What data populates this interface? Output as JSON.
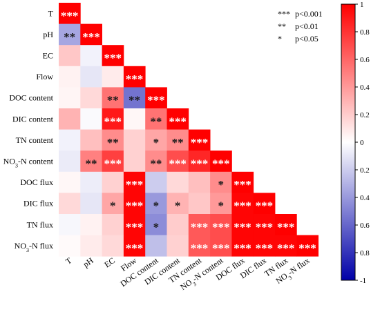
{
  "chart_data": {
    "type": "heatmap",
    "variables": [
      "T",
      "pH",
      "EC",
      "Flow",
      "DOC content",
      "DIC content",
      "TN content",
      "NO₃-N content",
      "DOC flux",
      "DIC flux",
      "TN flux",
      "NO₃-N flux"
    ],
    "matrix": [
      [
        1
      ],
      [
        -0.35,
        1
      ],
      [
        0.22,
        -0.05,
        1
      ],
      [
        0.05,
        -0.1,
        0.08,
        1
      ],
      [
        0.04,
        0.15,
        0.55,
        -0.55,
        1
      ],
      [
        0.3,
        -0.02,
        0.9,
        0.03,
        0.55,
        1
      ],
      [
        -0.05,
        0.25,
        0.45,
        0.18,
        0.35,
        0.45,
        1
      ],
      [
        -0.08,
        0.5,
        0.75,
        0.18,
        0.45,
        0.7,
        0.85,
        1
      ],
      [
        0.03,
        -0.07,
        0.18,
        0.98,
        -0.2,
        0.15,
        0.25,
        0.45,
        1
      ],
      [
        0.15,
        -0.1,
        0.35,
        0.98,
        -0.4,
        0.3,
        0.22,
        0.4,
        0.98,
        1
      ],
      [
        -0.03,
        0.05,
        0.18,
        0.98,
        -0.45,
        0.2,
        0.65,
        0.7,
        0.98,
        0.98,
        1
      ],
      [
        0.02,
        0.08,
        0.15,
        0.98,
        -0.25,
        0.18,
        0.65,
        0.7,
        0.98,
        0.98,
        0.98,
        1
      ]
    ],
    "significance": [
      [
        "***"
      ],
      [
        "**",
        "***"
      ],
      [
        "",
        "",
        "***"
      ],
      [
        "",
        "",
        "",
        "***"
      ],
      [
        "",
        "",
        "**",
        "**",
        "***"
      ],
      [
        "",
        "",
        "***",
        "",
        "**",
        "***"
      ],
      [
        "",
        "",
        "**",
        "",
        "*",
        "**",
        "***"
      ],
      [
        "",
        "**",
        "***",
        "",
        "**",
        "***",
        "***",
        "***"
      ],
      [
        "",
        "",
        "",
        "***",
        "",
        "",
        "",
        "*",
        "***"
      ],
      [
        "",
        "",
        "*",
        "***",
        "*",
        "*",
        "",
        "*",
        "***",
        "***"
      ],
      [
        "",
        "",
        "",
        "***",
        "*",
        "",
        "***",
        "***",
        "***",
        "***",
        "***"
      ],
      [
        "",
        "",
        "",
        "***",
        "",
        "",
        "***",
        "***",
        "***",
        "***",
        "***",
        "***"
      ]
    ],
    "row_labels": [
      {
        "main": "T"
      },
      {
        "main": "pH"
      },
      {
        "main": "EC"
      },
      {
        "main": "Flow"
      },
      {
        "main": "DOC content"
      },
      {
        "main": "DIC content"
      },
      {
        "main": "TN content"
      },
      {
        "pre": "NO",
        "sub": "3",
        "post": "-N content"
      },
      {
        "main": "DOC flux"
      },
      {
        "main": "DIC flux"
      },
      {
        "main": "TN flux"
      },
      {
        "pre": "NO",
        "sub": "3",
        "post": "-N flux"
      }
    ],
    "legend": [
      {
        "sym": "***",
        "text": "p<0.001"
      },
      {
        "sym": "**",
        "text": "p<0.01"
      },
      {
        "sym": "*",
        "text": "p<0.05"
      }
    ],
    "colorbar": {
      "ticks": [
        "1",
        "0.8",
        "0.6",
        "0.4",
        "0.2",
        "0",
        "0.2",
        "0.4",
        "0.6",
        "0.8",
        "-1"
      ],
      "colors": {
        "positive": "#ff0000",
        "zero": "#ffffff",
        "negative": "#0000a8"
      }
    },
    "range": [
      -1,
      1
    ]
  }
}
